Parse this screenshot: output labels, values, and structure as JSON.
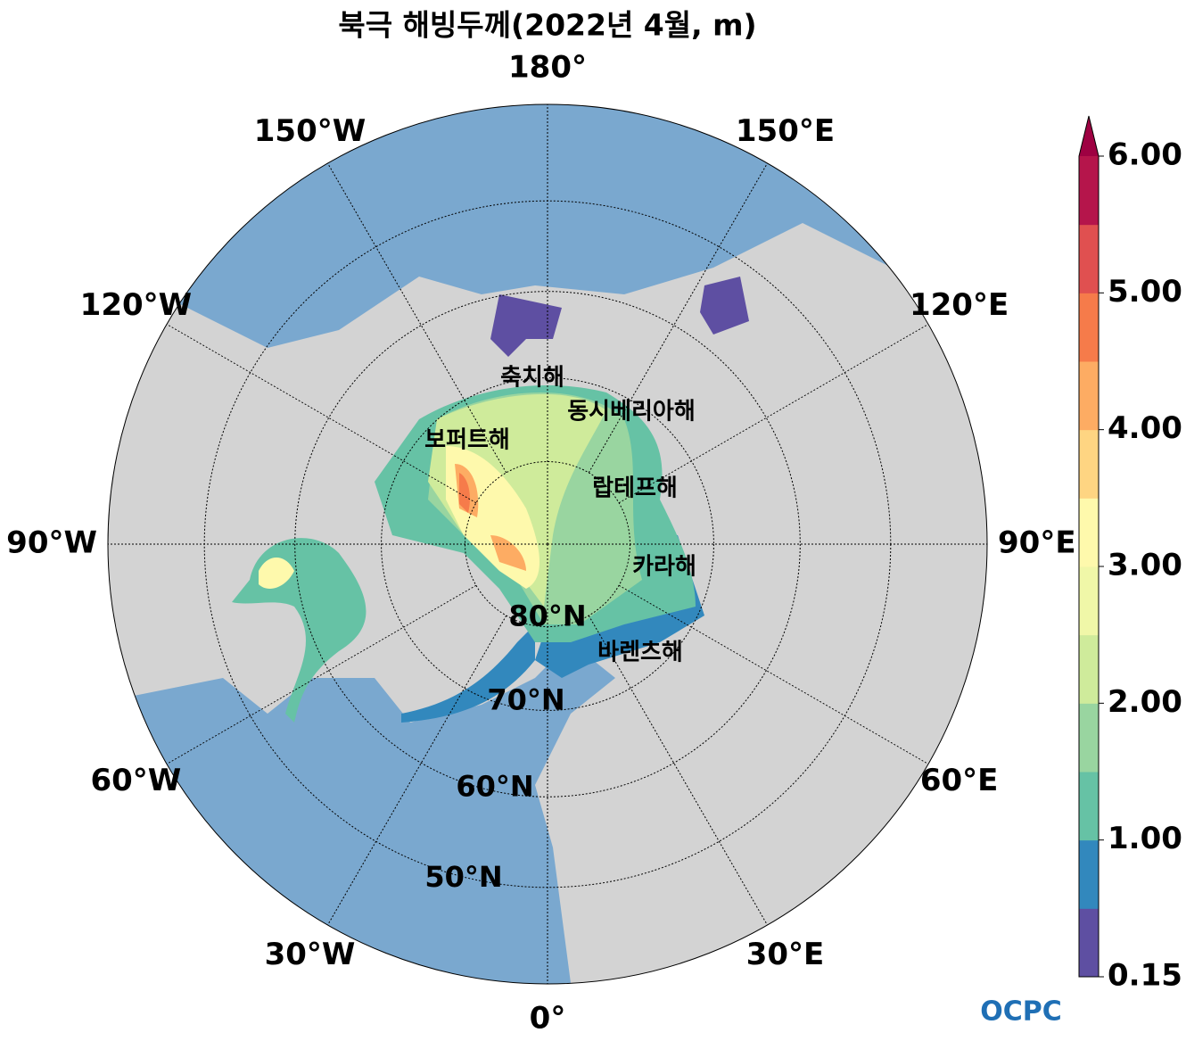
{
  "title": "북극 해빙두께(2022년 4월, m)",
  "lat_limit": 40,
  "longitudes": [
    {
      "value": 180,
      "label": "180°"
    },
    {
      "value": 150,
      "label": "150°E"
    },
    {
      "value": 120,
      "label": "120°E"
    },
    {
      "value": 90,
      "label": "90°E"
    },
    {
      "value": 60,
      "label": "60°E"
    },
    {
      "value": 30,
      "label": "30°E"
    },
    {
      "value": 0,
      "label": "0°"
    },
    {
      "value": -30,
      "label": "30°W"
    },
    {
      "value": -60,
      "label": "60°W"
    },
    {
      "value": -90,
      "label": "90°W"
    },
    {
      "value": -120,
      "label": "120°W"
    },
    {
      "value": -150,
      "label": "150°W"
    }
  ],
  "latitudes": [
    {
      "value": 80,
      "label": "80°N"
    },
    {
      "value": 70,
      "label": "70°N"
    },
    {
      "value": 60,
      "label": "60°N"
    },
    {
      "value": 50,
      "label": "50°N"
    }
  ],
  "seas": [
    "축치해",
    "동시베리아해",
    "보퍼트해",
    "랍테프해",
    "카라해",
    "바렌츠해"
  ],
  "colorbar": {
    "levels": [
      0.15,
      0.5,
      1,
      1.5,
      2,
      2.5,
      3,
      3.5,
      4,
      4.5,
      5,
      5.5,
      6
    ],
    "colors": [
      "#5e4fa2",
      "#3288bd",
      "#66c2a5",
      "#99d5a0",
      "#cfeb9b",
      "#f0f7a8",
      "#fef9ac",
      "#fed582",
      "#fdac63",
      "#f67b4a",
      "#e05050",
      "#b5154b"
    ],
    "extend_color": "#9e0142",
    "ticks": [
      {
        "value": 0.15,
        "label": "0.15"
      },
      {
        "value": 1,
        "label": "1.00"
      },
      {
        "value": 2,
        "label": "2.00"
      },
      {
        "value": 3,
        "label": "3.00"
      },
      {
        "value": 4,
        "label": "4.00"
      },
      {
        "value": 5,
        "label": "5.00"
      },
      {
        "value": 6,
        "label": "6.00"
      }
    ]
  },
  "logo": "OCPC"
}
